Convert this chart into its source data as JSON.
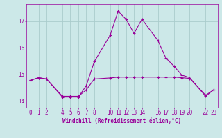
{
  "title": "",
  "xlabel": "Windchill (Refroidissement éolien,°C)",
  "ylabel": "",
  "background_color": "#cce8e8",
  "grid_color": "#aacccc",
  "line_color": "#990099",
  "xlim": [
    -0.5,
    23.5
  ],
  "ylim": [
    13.75,
    17.65
  ],
  "yticks": [
    14,
    15,
    16,
    17
  ],
  "xticks": [
    0,
    1,
    2,
    4,
    5,
    6,
    7,
    8,
    10,
    11,
    12,
    13,
    14,
    16,
    17,
    18,
    19,
    20,
    22,
    23
  ],
  "series1_x": [
    0,
    1,
    2,
    4,
    5,
    6,
    7,
    8,
    10,
    11,
    12,
    13,
    14,
    16,
    17,
    18,
    19,
    20,
    22,
    23
  ],
  "series1_y": [
    14.78,
    14.88,
    14.83,
    14.18,
    14.18,
    14.18,
    14.42,
    14.83,
    14.87,
    14.9,
    14.9,
    14.9,
    14.9,
    14.9,
    14.9,
    14.9,
    14.88,
    14.85,
    14.22,
    14.42
  ],
  "series2_x": [
    0,
    1,
    2,
    4,
    5,
    6,
    7,
    8,
    10,
    11,
    12,
    13,
    14,
    16,
    17,
    18,
    19,
    20,
    22,
    23
  ],
  "series2_y": [
    14.78,
    14.88,
    14.83,
    14.15,
    14.15,
    14.15,
    14.58,
    15.48,
    16.48,
    17.38,
    17.08,
    16.55,
    17.08,
    16.28,
    15.62,
    15.32,
    14.98,
    14.88,
    14.18,
    14.42
  ],
  "xlabel_fontsize": 5.5,
  "tick_fontsize": 5.5
}
